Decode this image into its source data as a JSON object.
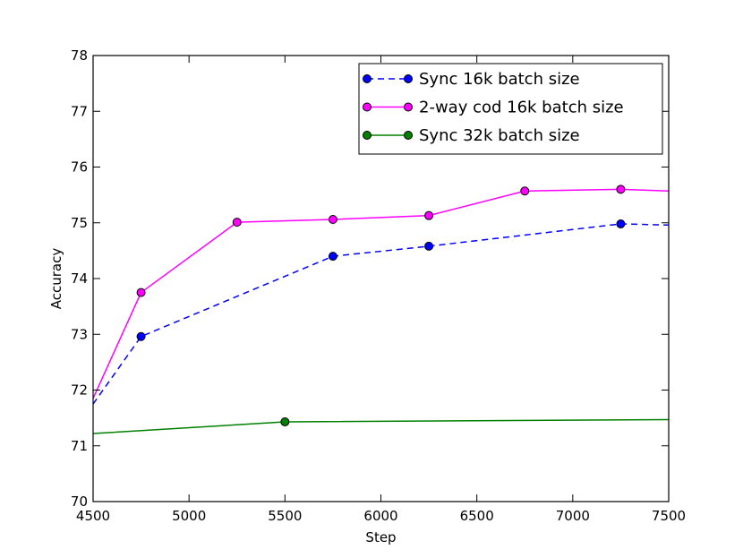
{
  "chart_data": {
    "type": "line",
    "xlabel": "Step",
    "ylabel": "Accuracy",
    "xlim": [
      4500,
      7500
    ],
    "ylim": [
      70,
      78
    ],
    "xticks": [
      4500,
      5000,
      5500,
      6000,
      6500,
      7000,
      7500
    ],
    "yticks": [
      70,
      71,
      72,
      73,
      74,
      75,
      76,
      77,
      78
    ],
    "grid": false,
    "legend_position": "top-right",
    "series": [
      {
        "name": "Sync 16k batch size",
        "color": "#0000ff",
        "line_style": "dashed",
        "marker_color": "#0000ff",
        "x": [
          4500,
          4750,
          5750,
          6250,
          7250,
          7500
        ],
        "y": [
          71.75,
          72.96,
          74.4,
          74.58,
          74.98,
          74.96
        ],
        "marker_x": [
          4750,
          5750,
          6250,
          7250
        ],
        "marker_y": [
          72.96,
          74.4,
          74.58,
          74.98
        ]
      },
      {
        "name": "2-way cod 16k batch size",
        "color": "#ff00ff",
        "line_style": "solid",
        "marker_color": "#ff00ff",
        "x": [
          4500,
          4750,
          5250,
          5750,
          6250,
          6750,
          7250,
          7500
        ],
        "y": [
          71.85,
          73.75,
          75.01,
          75.06,
          75.13,
          75.57,
          75.6,
          75.57
        ],
        "marker_x": [
          4750,
          5250,
          5750,
          6250,
          6750,
          7250
        ],
        "marker_y": [
          73.75,
          75.01,
          75.06,
          75.13,
          75.57,
          75.6
        ]
      },
      {
        "name": "Sync 32k batch size",
        "color": "#008000",
        "line_style": "solid",
        "marker_color": "#008000",
        "x": [
          4500,
          5500,
          7500
        ],
        "y": [
          71.22,
          71.43,
          71.47
        ],
        "marker_x": [
          5500
        ],
        "marker_y": [
          71.43
        ]
      }
    ]
  }
}
